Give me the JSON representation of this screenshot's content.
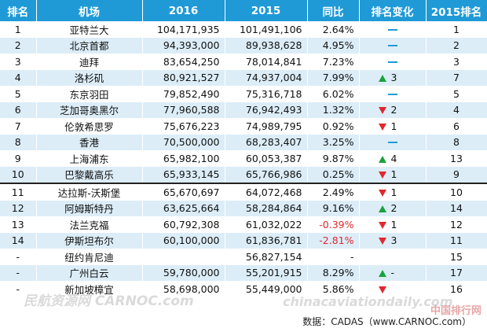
{
  "table": {
    "headers": [
      "排名",
      "机场",
      "2016",
      "2015",
      "同比",
      "排名变化",
      "2015排名"
    ],
    "rows": [
      {
        "rank": "1",
        "airport": "亚特兰大",
        "v2016": "104,171,935",
        "v2015": "101,491,106",
        "yoy": "2.64%",
        "change_dir": "none",
        "change_val": "",
        "rank2015": "1"
      },
      {
        "rank": "2",
        "airport": "北京首都",
        "v2016": "94,393,000",
        "v2015": "89,938,628",
        "yoy": "4.95%",
        "change_dir": "none",
        "change_val": "",
        "rank2015": "2"
      },
      {
        "rank": "3",
        "airport": "迪拜",
        "v2016": "83,654,250",
        "v2015": "78,014,841",
        "yoy": "7.23%",
        "change_dir": "none",
        "change_val": "",
        "rank2015": "3"
      },
      {
        "rank": "4",
        "airport": "洛杉矶",
        "v2016": "80,921,527",
        "v2015": "74,937,004",
        "yoy": "7.99%",
        "change_dir": "up",
        "change_val": "3",
        "rank2015": "7"
      },
      {
        "rank": "5",
        "airport": "东京羽田",
        "v2016": "79,852,490",
        "v2015": "75,316,718",
        "yoy": "6.02%",
        "change_dir": "none",
        "change_val": "",
        "rank2015": "5"
      },
      {
        "rank": "6",
        "airport": "芝加哥奥黑尔",
        "v2016": "77,960,588",
        "v2015": "76,942,493",
        "yoy": "1.32%",
        "change_dir": "down",
        "change_val": "2",
        "rank2015": "4"
      },
      {
        "rank": "7",
        "airport": "伦敦希思罗",
        "v2016": "75,676,223",
        "v2015": "74,989,795",
        "yoy": "0.92%",
        "change_dir": "down",
        "change_val": "1",
        "rank2015": "6"
      },
      {
        "rank": "8",
        "airport": "香港",
        "v2016": "70,500,000",
        "v2015": "68,283,407",
        "yoy": "3.25%",
        "change_dir": "none",
        "change_val": "",
        "rank2015": "8"
      },
      {
        "rank": "9",
        "airport": "上海浦东",
        "v2016": "65,982,100",
        "v2015": "60,053,387",
        "yoy": "9.87%",
        "change_dir": "up",
        "change_val": "4",
        "rank2015": "13"
      },
      {
        "rank": "10",
        "airport": "巴黎戴高乐",
        "v2016": "65,933,145",
        "v2015": "65,766,986",
        "yoy": "0.25%",
        "change_dir": "down",
        "change_val": "1",
        "rank2015": "9"
      },
      {
        "rank": "11",
        "airport": "达拉斯-沃斯堡",
        "v2016": "65,670,697",
        "v2015": "64,072,468",
        "yoy": "2.49%",
        "change_dir": "down",
        "change_val": "1",
        "rank2015": "10"
      },
      {
        "rank": "12",
        "airport": "阿姆斯特丹",
        "v2016": "63,625,664",
        "v2015": "58,284,864",
        "yoy": "9.16%",
        "change_dir": "up",
        "change_val": "2",
        "rank2015": "14"
      },
      {
        "rank": "13",
        "airport": "法兰克福",
        "v2016": "60,792,308",
        "v2015": "61,032,022",
        "yoy": "-0.39%",
        "change_dir": "down",
        "change_val": "1",
        "rank2015": "12"
      },
      {
        "rank": "14",
        "airport": "伊斯坦布尔",
        "v2016": "60,100,000",
        "v2015": "61,836,781",
        "yoy": "-2.81%",
        "change_dir": "down",
        "change_val": "3",
        "rank2015": "11"
      },
      {
        "rank": "-",
        "airport": "纽约肯尼迪",
        "v2016": "",
        "v2015": "56,827,154",
        "yoy": "-",
        "change_dir": "blank",
        "change_val": "",
        "rank2015": "15"
      },
      {
        "rank": "-",
        "airport": "广州白云",
        "v2016": "59,780,000",
        "v2015": "55,201,915",
        "yoy": "8.29%",
        "change_dir": "up",
        "change_val": "-",
        "rank2015": "17"
      },
      {
        "rank": "-",
        "airport": "新加坡樟宜",
        "v2016": "58,698,000",
        "v2015": "55,449,000",
        "yoy": "5.86%",
        "change_dir": "down",
        "change_val": "",
        "rank2015": "16"
      }
    ]
  },
  "source": "数据：CADAS（www.CARNOC.com）",
  "watermarks": [
    "民航资源网 CARNOC.com",
    "chinacaviationdaily.com",
    "中国排行网"
  ],
  "colors": {
    "header_bg": "#1f9ad6",
    "stripe": "#dcedf8",
    "up": "#1aa33b",
    "down": "#e0282e",
    "negative_text": "#e0282e"
  }
}
